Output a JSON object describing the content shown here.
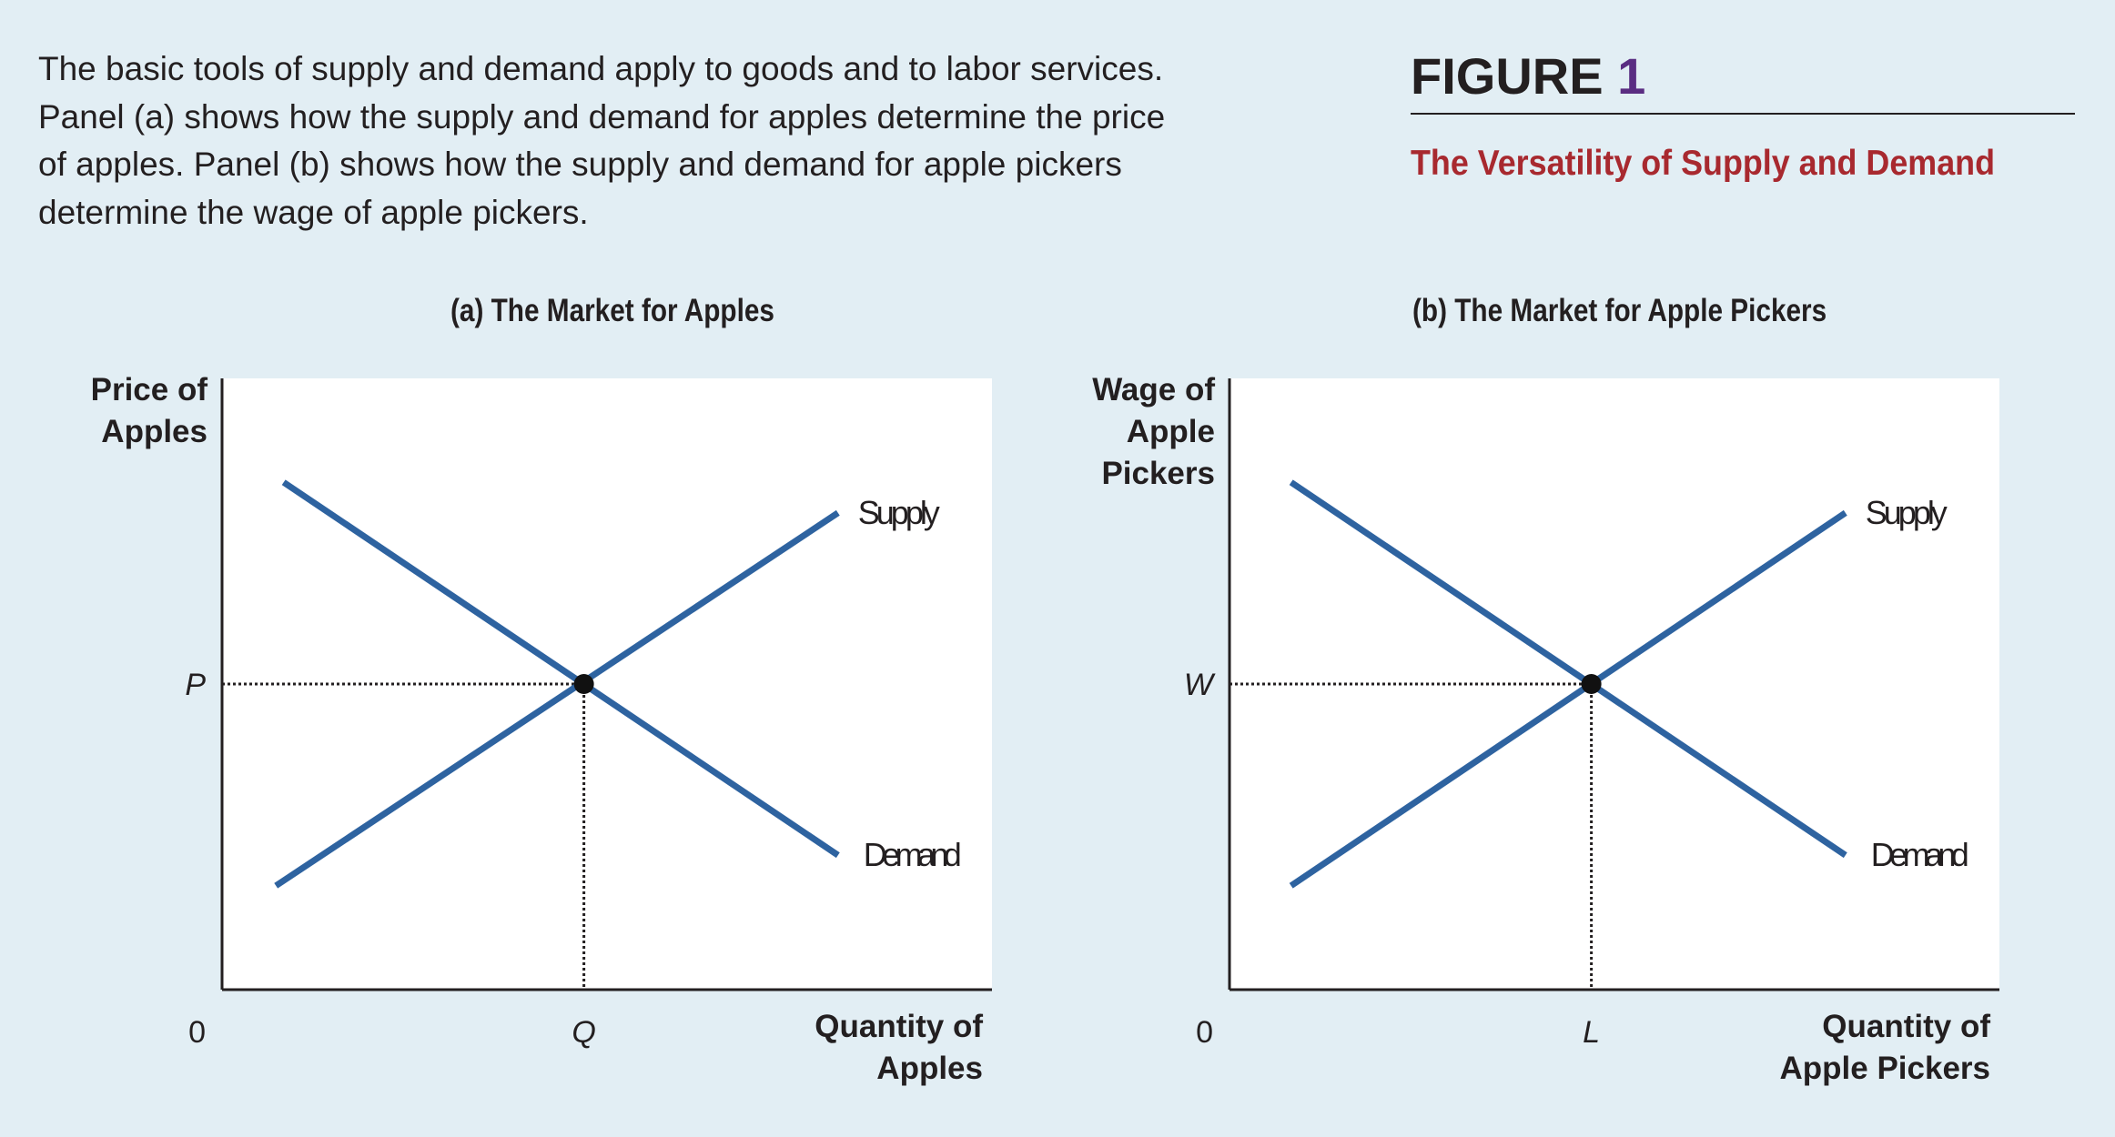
{
  "caption": "The basic tools of supply and demand apply to goods and to labor services.\nPanel (a) shows how the supply and demand for apples determine the price\nof apples. Panel (b) shows how the supply and demand for apple pickers\ndetermine the wage of apple pickers.",
  "caption_lines": [
    "The basic tools of supply and demand apply to goods and to labor services.",
    "Panel (a) shows how the supply and demand for apples determine the price",
    "of apples. Panel (b) shows how the supply and demand for apple pickers",
    "determine the wage of apple pickers."
  ],
  "figure": {
    "label": "FIGURE",
    "number": "1",
    "title": "The Versatility of Supply and Demand"
  },
  "colors": {
    "curve": "#2e63a0",
    "title_red": "#a8292f",
    "number_purple": "#5a2d82"
  },
  "panels": [
    {
      "title": "(a) The Market for Apples",
      "y_label": [
        "Price of",
        "Apples"
      ],
      "x_label": [
        "Quantity of",
        "Apples"
      ],
      "origin": "0",
      "eq_price_label": "P",
      "eq_qty_label": "Q",
      "supply_label": "Supply",
      "demand_label": "Demand",
      "demand_line": [
        [
          0.08,
          0.83
        ],
        [
          0.8,
          0.22
        ]
      ],
      "supply_line": [
        [
          0.07,
          0.17
        ],
        [
          0.8,
          0.78
        ]
      ],
      "equilibrium": [
        0.47,
        0.5
      ]
    },
    {
      "title": "(b) The Market for Apple Pickers",
      "y_label": [
        "Wage of",
        "Apple",
        "Pickers"
      ],
      "x_label": [
        "Quantity of",
        "Apple Pickers"
      ],
      "origin": "0",
      "eq_price_label": "W",
      "eq_qty_label": "L",
      "supply_label": "Supply",
      "demand_label": "Demand",
      "demand_line": [
        [
          0.08,
          0.83
        ],
        [
          0.8,
          0.22
        ]
      ],
      "supply_line": [
        [
          0.08,
          0.17
        ],
        [
          0.8,
          0.78
        ]
      ],
      "equilibrium": [
        0.47,
        0.5
      ]
    }
  ]
}
